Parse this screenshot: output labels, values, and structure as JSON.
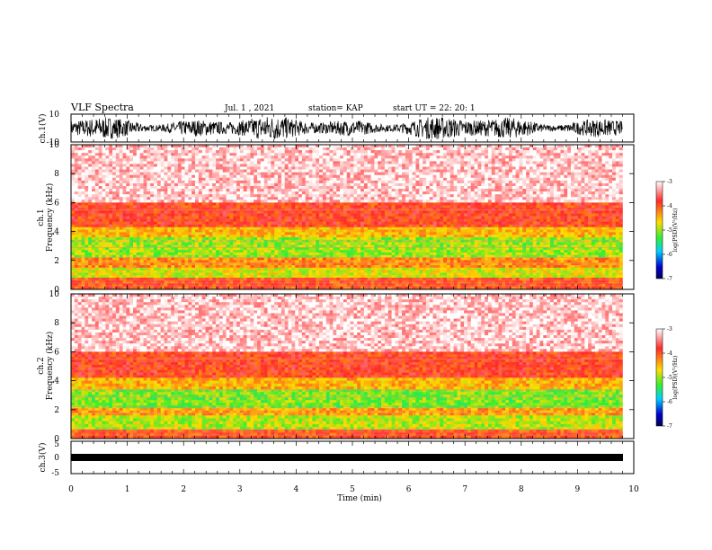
{
  "header": {
    "title": "VLF Spectra",
    "date": "Jul. 1 , 2021",
    "station": "station= KAP",
    "start_ut": "start UT = 22: 20: 1"
  },
  "chart_data": [
    {
      "type": "line",
      "panel": "ch1-waveform",
      "ylabel": "ch.1(V)",
      "ylim": [
        -10,
        10
      ],
      "yticks": [
        "10",
        "-10"
      ],
      "xlim": [
        0,
        10
      ],
      "description_of_trace": "dense oscillating signal spanning roughly -8 to 8 V across 0–9.8 min"
    },
    {
      "type": "heatmap",
      "panel": "ch1-spectrogram",
      "ylabel": "ch.1\nFrequency (kHz)",
      "ylabel_line1": "ch.1",
      "ylabel_line2": "Frequency (kHz)",
      "ylim": [
        0,
        10
      ],
      "yticks": [
        "10",
        "8",
        "6",
        "4",
        "2",
        "0"
      ],
      "xlim": [
        0,
        9.8
      ],
      "colorbar": {
        "label": "log(PSD)(V²/Hz)",
        "range": [
          -7,
          -3
        ],
        "ticks": [
          "-3",
          "-4",
          "-5",
          "-6",
          "-7"
        ],
        "colors": [
          "#ffffff",
          "#ff2a2a",
          "#ffdd00",
          "#33ee33",
          "#00d0ff",
          "#0000cc",
          "#000055"
        ]
      },
      "bands_khz": [
        {
          "from": 10,
          "to": 6,
          "level": -3.2
        },
        {
          "from": 6,
          "to": 4.3,
          "level": -3.9
        },
        {
          "from": 4.3,
          "to": 3.6,
          "level": -4.5
        },
        {
          "from": 3.6,
          "to": 2.2,
          "level": -5.0
        },
        {
          "from": 2.2,
          "to": 1.5,
          "level": -4.3
        },
        {
          "from": 1.5,
          "to": 0.8,
          "level": -4.8
        },
        {
          "from": 0.8,
          "to": 0,
          "level": -4.0
        }
      ]
    },
    {
      "type": "heatmap",
      "panel": "ch2-spectrogram",
      "ylabel_line1": "ch.2",
      "ylabel_line2": "Frequency (kHz)",
      "ylim": [
        0,
        10
      ],
      "yticks": [
        "10",
        "8",
        "6",
        "4",
        "2",
        "0"
      ],
      "xlim": [
        0,
        9.8
      ],
      "colorbar": {
        "label": "log(PSD)(V²/Hz)",
        "range": [
          -7,
          -3
        ],
        "ticks": [
          "-3",
          "-4",
          "-5",
          "-6",
          "-7"
        ]
      },
      "bands_khz": [
        {
          "from": 10,
          "to": 6,
          "level": -3.2
        },
        {
          "from": 6,
          "to": 4.2,
          "level": -3.9
        },
        {
          "from": 4.2,
          "to": 3.4,
          "level": -4.5
        },
        {
          "from": 3.4,
          "to": 2.1,
          "level": -5.1
        },
        {
          "from": 2.1,
          "to": 1.6,
          "level": -4.4
        },
        {
          "from": 1.6,
          "to": 0.6,
          "level": -4.9
        },
        {
          "from": 0.6,
          "to": 0,
          "level": -4.0
        }
      ]
    },
    {
      "type": "line",
      "panel": "ch3-waveform",
      "ylabel": "ch.3(V)",
      "ylim": [
        -5,
        5
      ],
      "yticks": [
        "5",
        "0",
        "-5"
      ],
      "xlim": [
        0,
        10
      ],
      "description_of_trace": "narrow constant band around -1 V"
    }
  ],
  "xaxis": {
    "label": "Time (min)",
    "ticks": [
      "0",
      "1",
      "2",
      "3",
      "4",
      "5",
      "6",
      "7",
      "8",
      "9",
      "10"
    ],
    "range": [
      0,
      10
    ]
  }
}
